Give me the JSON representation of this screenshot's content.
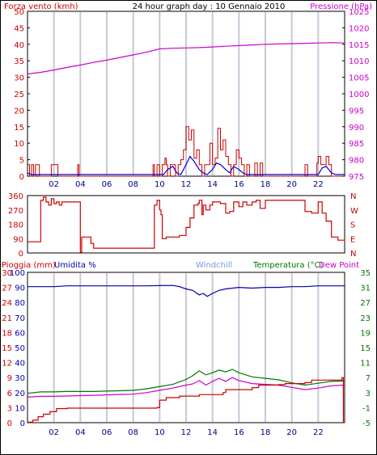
{
  "header": {
    "left_label": "Forza vento (kmh)",
    "title": "24 hour graph day : 10 Gennaio 2010",
    "right_label": "Pressione (hPa)"
  },
  "colors": {
    "wind": "#cc0000",
    "gust": "#0000cc",
    "pressure": "#cc00cc",
    "grid": "#c8c8d8",
    "frame": "#000000",
    "rain": "#cc0000",
    "humidity": "#0000aa",
    "windchill": "#7799dd",
    "temperature": "#007700",
    "dewpoint": "#cc00cc",
    "green_axis": "#007700"
  },
  "chart_data": [
    {
      "type": "line",
      "panel": "wind-pressure",
      "left_axis": {
        "ticks": [
          0,
          5,
          10,
          15,
          20,
          25,
          30,
          35,
          40,
          45,
          50
        ],
        "ylim": [
          0,
          50
        ]
      },
      "right_axis": {
        "ticks": [
          975,
          980,
          985,
          990,
          995,
          1000,
          1005,
          1010,
          1015,
          1020,
          1025
        ],
        "ylim": [
          975,
          1025
        ]
      },
      "x_ticks": [
        "02",
        "04",
        "06",
        "08",
        "10",
        "12",
        "14",
        "16",
        "18",
        "20",
        "22"
      ],
      "xlim": [
        0,
        24
      ],
      "series": [
        {
          "name": "Forza vento (kmh)",
          "kind": "step",
          "x": [
            0.0,
            0.15,
            0.3,
            0.45,
            0.6,
            0.9,
            1.0,
            1.8,
            2.3,
            2.4,
            3.8,
            3.9,
            5.0,
            6.0,
            7.0,
            8.0,
            9.5,
            9.6,
            9.8,
            10.0,
            10.2,
            10.4,
            10.5,
            10.6,
            10.8,
            11.0,
            11.2,
            11.4,
            11.6,
            11.8,
            12.0,
            12.2,
            12.4,
            12.6,
            12.8,
            13.0,
            13.2,
            13.4,
            13.6,
            13.8,
            14.0,
            14.2,
            14.4,
            14.6,
            14.8,
            15.0,
            15.2,
            15.4,
            15.6,
            15.8,
            16.0,
            16.2,
            16.4,
            16.6,
            16.8,
            17.0,
            17.2,
            17.4,
            17.6,
            17.8,
            18.0,
            18.2,
            18.4,
            18.6,
            18.8,
            19.0,
            20.0,
            21.0,
            21.2,
            21.4,
            21.9,
            22.0,
            22.2,
            22.4,
            22.6,
            22.8,
            23.0,
            23.2,
            23.4,
            23.6,
            24.0
          ],
          "values": [
            3.5,
            0,
            3.5,
            0,
            3.5,
            0,
            0,
            3.5,
            0,
            0,
            3.5,
            0,
            0,
            0,
            0,
            0,
            3.5,
            0,
            3.5,
            0,
            3.5,
            5.5,
            3.5,
            0,
            3.5,
            3.5,
            0,
            3.5,
            5,
            8,
            15,
            11,
            14,
            5.5,
            8,
            3.5,
            0,
            3.5,
            3.5,
            10,
            3.5,
            5.5,
            14.5,
            8,
            11,
            6,
            3.5,
            0,
            3.5,
            8,
            5.5,
            3.5,
            0,
            3.5,
            0,
            0,
            4,
            0,
            4,
            0,
            0,
            0,
            0,
            0,
            0,
            0,
            0,
            3.5,
            0,
            0,
            4,
            6,
            3.5,
            3.5,
            6,
            3.5,
            0,
            0,
            0,
            0,
            0
          ]
        },
        {
          "name": "gust",
          "kind": "line",
          "x": [
            0.0,
            0.3,
            0.6,
            1.0,
            2.0,
            2.5,
            4.0,
            6.0,
            8.0,
            9.5,
            10.0,
            10.3,
            10.6,
            11.0,
            11.3,
            11.6,
            12.0,
            12.3,
            12.6,
            13.0,
            13.3,
            13.6,
            14.0,
            14.3,
            14.6,
            15.0,
            15.3,
            15.6,
            16.0,
            16.3,
            16.6,
            17.0,
            17.5,
            18.0,
            19.0,
            20.0,
            21.0,
            22.0,
            22.3,
            22.6,
            23.0,
            23.3,
            24.0
          ],
          "values": [
            1,
            0.5,
            0.5,
            0.5,
            0.5,
            0.5,
            0.5,
            0.5,
            0.5,
            0.5,
            0.5,
            0.5,
            2,
            3,
            1,
            0.5,
            3.5,
            6,
            4.5,
            2,
            1,
            0.5,
            2,
            4,
            3.5,
            2,
            1,
            3,
            2,
            1,
            0.5,
            0.5,
            0.5,
            0.5,
            0.5,
            0.5,
            0.5,
            0.5,
            2.5,
            3,
            1,
            0.5,
            0.5
          ]
        },
        {
          "name": "Pressione (hPa)",
          "kind": "line",
          "axis": "right",
          "x": [
            0.0,
            1.0,
            2.0,
            3.0,
            4.0,
            5.0,
            6.0,
            7.0,
            8.0,
            9.0,
            10.0,
            11.0,
            12.0,
            13.0,
            14.0,
            15.0,
            16.0,
            17.0,
            18.0,
            19.0,
            20.0,
            21.0,
            22.0,
            23.0,
            24.0
          ],
          "values": [
            1006,
            1006.5,
            1007.2,
            1008,
            1008.7,
            1009.5,
            1010.2,
            1011,
            1011.8,
            1012.6,
            1013.6,
            1013.8,
            1013.9,
            1014,
            1014.2,
            1014.4,
            1014.6,
            1014.8,
            1015,
            1015.1,
            1015.2,
            1015.3,
            1015.4,
            1015.5,
            1015.4
          ]
        }
      ]
    },
    {
      "type": "line",
      "panel": "wind-direction",
      "left_axis": {
        "ticks": [
          0,
          90,
          180,
          270,
          360
        ],
        "ylim": [
          0,
          360
        ]
      },
      "right_axis_labels": [
        "N",
        "W",
        "S",
        "E",
        "N"
      ],
      "xlim": [
        0,
        24
      ],
      "series": [
        {
          "name": "direction",
          "x": [
            0.0,
            0.3,
            0.6,
            0.8,
            1.0,
            1.2,
            1.4,
            1.6,
            1.8,
            2.0,
            2.2,
            2.4,
            2.6,
            3.0,
            3.5,
            3.8,
            3.9,
            4.0,
            4.1,
            4.2,
            4.6,
            4.8,
            5.0,
            6.0,
            7.0,
            8.0,
            9.0,
            9.5,
            9.6,
            9.8,
            10.0,
            10.1,
            10.2,
            10.5,
            11.0,
            11.5,
            12.0,
            12.3,
            12.6,
            12.9,
            13.0,
            13.2,
            13.3,
            13.5,
            13.8,
            14.0,
            14.3,
            14.6,
            15.0,
            15.3,
            15.6,
            16.0,
            16.3,
            16.6,
            17.0,
            17.3,
            17.6,
            18.0,
            18.5,
            19.0,
            19.5,
            20.0,
            20.5,
            21.0,
            21.5,
            22.0,
            22.3,
            22.6,
            23.0,
            23.5,
            24.0
          ],
          "values": [
            70,
            70,
            70,
            70,
            330,
            350,
            320,
            300,
            340,
            310,
            320,
            300,
            320,
            320,
            320,
            320,
            320,
            5,
            100,
            100,
            100,
            60,
            30,
            30,
            30,
            30,
            30,
            30,
            300,
            330,
            270,
            240,
            90,
            100,
            100,
            110,
            160,
            220,
            300,
            310,
            330,
            240,
            300,
            270,
            300,
            320,
            320,
            310,
            250,
            260,
            320,
            290,
            320,
            300,
            320,
            330,
            280,
            330,
            330,
            330,
            330,
            330,
            330,
            260,
            250,
            320,
            250,
            200,
            100,
            80,
            70
          ]
        }
      ]
    },
    {
      "type": "line",
      "panel": "rain-humidity-temperature",
      "labels": {
        "rain": "Pioggia (mm)",
        "humidity": "Umidita %",
        "windchill": "Windchill",
        "temperature": "Temperatura (°C)",
        "dewpoint": "Dew Point"
      },
      "axis_humidity": {
        "ticks": [
          0,
          10,
          20,
          30,
          40,
          50,
          60,
          70,
          80,
          90,
          100
        ],
        "ylim": [
          0,
          100
        ]
      },
      "axis_rain": {
        "ticks": [
          0,
          3,
          6,
          9,
          12,
          15,
          18,
          21,
          24,
          27,
          30
        ],
        "ylim": [
          0,
          30
        ]
      },
      "axis_temperature": {
        "ticks": [
          -5,
          -1,
          3,
          7,
          11,
          15,
          19,
          23,
          27,
          31,
          35
        ],
        "ylim": [
          -5,
          35
        ]
      },
      "x_ticks": [
        "02",
        "04",
        "06",
        "08",
        "10",
        "12",
        "14",
        "16",
        "18",
        "20",
        "22"
      ],
      "xlim": [
        0,
        24
      ],
      "series": [
        {
          "name": "Umidita %",
          "x": [
            0.0,
            1.0,
            2.0,
            3.0,
            5.0,
            7.0,
            9.0,
            10.0,
            11.0,
            11.5,
            12.0,
            12.5,
            13.0,
            13.3,
            13.6,
            14.0,
            14.5,
            15.0,
            16.0,
            17.0,
            18.0,
            19.0,
            20.0,
            21.0,
            22.0,
            23.0,
            24.0
          ],
          "values": [
            90.5,
            90.5,
            90.5,
            91,
            91,
            91,
            91,
            91.2,
            91.3,
            90.5,
            89,
            88,
            85,
            86,
            84,
            86,
            88,
            89,
            90,
            89.5,
            90,
            90,
            90.5,
            90.5,
            91,
            91,
            91
          ]
        },
        {
          "name": "Temperatura (°C)",
          "axis": "temperature",
          "x": [
            0.0,
            1.0,
            2.0,
            3.0,
            4.0,
            5.0,
            6.0,
            7.0,
            8.0,
            9.0,
            10.0,
            11.0,
            12.0,
            12.5,
            13.0,
            13.5,
            14.0,
            14.5,
            15.0,
            15.5,
            16.0,
            17.0,
            18.0,
            19.0,
            20.0,
            21.0,
            22.0,
            23.0,
            24.0
          ],
          "values": [
            2.8,
            3.2,
            3.2,
            3.3,
            3.3,
            3.3,
            3.4,
            3.5,
            3.6,
            4.0,
            4.6,
            5.2,
            6.5,
            7.5,
            8.8,
            7.7,
            8.3,
            9.0,
            8.5,
            9.2,
            8.3,
            7.2,
            6.8,
            6.4,
            5.6,
            5.0,
            5.5,
            6.0,
            6.1
          ]
        },
        {
          "name": "Dew Point",
          "axis": "temperature",
          "x": [
            0.0,
            1.0,
            2.0,
            3.0,
            4.0,
            5.0,
            6.0,
            7.0,
            8.0,
            9.0,
            10.0,
            11.0,
            12.0,
            12.5,
            13.0,
            13.5,
            14.0,
            14.5,
            15.0,
            15.5,
            16.0,
            17.0,
            18.0,
            19.0,
            20.0,
            21.0,
            22.0,
            23.0,
            24.0
          ],
          "values": [
            1.8,
            2.0,
            2.0,
            2.1,
            2.2,
            2.3,
            2.4,
            2.5,
            2.6,
            3.0,
            3.6,
            4.2,
            5.0,
            5.3,
            6.2,
            5.0,
            6.0,
            6.8,
            6.0,
            7.0,
            6.2,
            5.4,
            5.2,
            5.0,
            4.4,
            3.8,
            4.2,
            4.8,
            5.0
          ]
        },
        {
          "name": "Pioggia (mm)",
          "axis": "rain",
          "kind": "step",
          "x": [
            0.0,
            0.4,
            0.8,
            1.2,
            1.7,
            2.2,
            3.0,
            9.8,
            10.0,
            10.5,
            11.5,
            13.0,
            14.8,
            15.0,
            17.0,
            17.5,
            19.0,
            19.5,
            21.0,
            21.5,
            23.8,
            23.9,
            24.0
          ],
          "values": [
            0.1,
            0.5,
            1.2,
            1.7,
            2.2,
            2.8,
            2.9,
            3.0,
            4.5,
            5.0,
            5.3,
            5.6,
            6.0,
            6.6,
            7.0,
            7.5,
            7.6,
            7.8,
            8.0,
            8.5,
            9.0,
            0.0,
            0.0
          ]
        }
      ]
    }
  ]
}
